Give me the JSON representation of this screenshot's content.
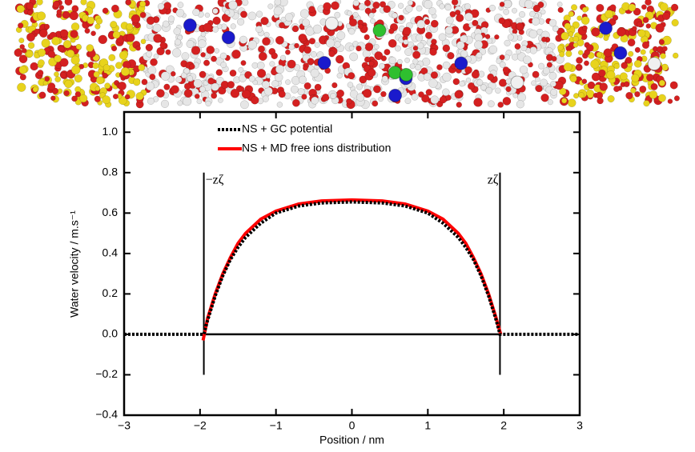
{
  "chart_data": {
    "type": "line",
    "x_label": "Position / nm",
    "y_label": "Water velocity / m.s⁻¹",
    "xlim": [
      -3,
      3
    ],
    "ylim": [
      -0.4,
      1.1
    ],
    "xticks": [
      {
        "value": -3,
        "label": "−3"
      },
      {
        "value": -2,
        "label": "−2"
      },
      {
        "value": -1,
        "label": "−1"
      },
      0,
      1,
      2,
      3
    ],
    "yticks": [
      {
        "value": -0.4,
        "label": "−0.4"
      },
      {
        "value": -0.2,
        "label": "−0.2"
      },
      {
        "value": 0,
        "label": "0.0"
      },
      0.2,
      0.4,
      0.6,
      0.8,
      {
        "value": 1,
        "label": "1.0"
      }
    ],
    "legend": "upper left",
    "series": [
      {
        "name": "NS + GC potential",
        "color": "#000000",
        "style": "dotted",
        "x": [
          -3,
          -1.95,
          -1.9,
          -1.8,
          -1.7,
          -1.6,
          -1.5,
          -1.4,
          -1.2,
          -1.0,
          -0.7,
          -0.4,
          0,
          0.4,
          0.7,
          1.0,
          1.2,
          1.4,
          1.5,
          1.6,
          1.7,
          1.8,
          1.9,
          1.95,
          3
        ],
        "values": [
          0,
          0,
          0.07,
          0.19,
          0.29,
          0.37,
          0.43,
          0.48,
          0.55,
          0.6,
          0.635,
          0.65,
          0.655,
          0.65,
          0.635,
          0.6,
          0.55,
          0.48,
          0.43,
          0.37,
          0.29,
          0.19,
          0.07,
          0,
          0
        ]
      },
      {
        "name": "NS + MD free ions distribution",
        "color": "#ff0000",
        "style": "solid",
        "x": [
          -1.96,
          -1.9,
          -1.8,
          -1.7,
          -1.6,
          -1.5,
          -1.4,
          -1.2,
          -1.0,
          -0.7,
          -0.4,
          0,
          0.4,
          0.7,
          1.0,
          1.2,
          1.4,
          1.5,
          1.6,
          1.7,
          1.8,
          1.9,
          1.96
        ],
        "values": [
          -0.03,
          0.08,
          0.2,
          0.3,
          0.38,
          0.45,
          0.5,
          0.57,
          0.61,
          0.645,
          0.66,
          0.665,
          0.66,
          0.645,
          0.61,
          0.57,
          0.5,
          0.45,
          0.38,
          0.3,
          0.2,
          0.08,
          0
        ]
      }
    ],
    "vlines": [
      {
        "x": -1.95,
        "ymin": -0.2,
        "ymax": 0.8,
        "label": "−zζ"
      },
      {
        "x": 1.95,
        "ymin": -0.2,
        "ymax": 0.8,
        "label": "zζ"
      }
    ],
    "hline": {
      "y": 0,
      "xmin": -1.95,
      "xmax": 1.95
    }
  }
}
